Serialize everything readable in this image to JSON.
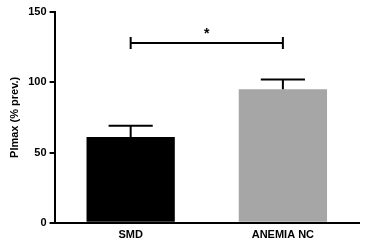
{
  "chart_data": {
    "type": "bar",
    "y_label": "PImax (% prev.)",
    "categories": [
      "SMD",
      "ANEMIA NC"
    ],
    "values": [
      61,
      95
    ],
    "errors": [
      8,
      7
    ],
    "colors": [
      "#000000",
      "#a6a6a6"
    ],
    "ylim": [
      0,
      150
    ],
    "yticks": [
      0,
      50,
      100,
      150
    ],
    "grid": false,
    "annotations": [
      {
        "text": "*",
        "between": [
          "SMD",
          "ANEMIA NC"
        ],
        "y": 128
      }
    ]
  }
}
